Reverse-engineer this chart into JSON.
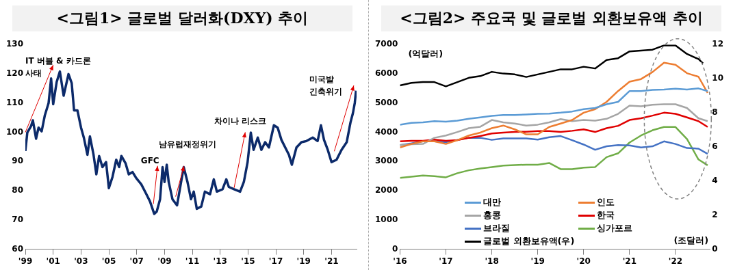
{
  "chart_data": [
    {
      "type": "line",
      "title": "<그림1> 글로벌 달러화(DXY) 추이",
      "x": [
        1999.0,
        1999.14,
        1999.4,
        1999.54,
        1999.77,
        1999.95,
        2000.17,
        2000.4,
        2000.67,
        2000.85,
        2001.0,
        2001.25,
        2001.48,
        2001.75,
        2002.1,
        2002.33,
        2002.5,
        2002.74,
        2003.0,
        2003.2,
        2003.46,
        2003.64,
        2003.9,
        2004.1,
        2004.3,
        2004.54,
        2004.8,
        2005.0,
        2005.26,
        2005.53,
        2005.74,
        2005.9,
        2006.2,
        2006.43,
        2006.7,
        2006.97,
        2007.33,
        2007.7,
        2007.96,
        2008.26,
        2008.44,
        2008.68,
        2008.86,
        2009.0,
        2009.16,
        2009.3,
        2009.57,
        2009.9,
        2010.1,
        2010.38,
        2010.65,
        2010.9,
        2011.1,
        2011.32,
        2011.64,
        2011.9,
        2012.27,
        2012.54,
        2012.76,
        2013.17,
        2013.44,
        2013.62,
        2014.0,
        2014.43,
        2014.7,
        2014.97,
        2015.2,
        2015.4,
        2015.7,
        2015.96,
        2016.23,
        2016.5,
        2016.86,
        2017.13,
        2017.4,
        2017.76,
        2017.94,
        2018.15,
        2018.48,
        2018.84,
        2019.2,
        2019.65,
        2020.0,
        2020.24,
        2020.46,
        2020.73,
        2021.0,
        2021.36,
        2021.72,
        2022.09,
        2022.36,
        2022.54,
        2022.67,
        2022.76
      ],
      "series": [
        {
          "color": "#0c2a6a",
          "values": [
            93.6,
            99.9,
            102,
            104.1,
            97.8,
            101.6,
            100.3,
            105.8,
            110,
            118.4,
            109.6,
            117.2,
            120.8,
            112.5,
            119.9,
            116.8,
            107.5,
            107.5,
            101.6,
            98.2,
            92.3,
            98.6,
            92.3,
            85.6,
            91.9,
            88.1,
            89.8,
            80.9,
            84.7,
            90.6,
            88.1,
            91.9,
            89.4,
            85.6,
            86.4,
            84.3,
            82.2,
            78.8,
            76.3,
            72.1,
            72.9,
            77.1,
            88.1,
            83,
            88.9,
            83,
            77.1,
            75,
            80.5,
            88.1,
            83,
            77.1,
            79.7,
            73.8,
            74.6,
            79.7,
            78.8,
            83.9,
            79.7,
            80.5,
            83.9,
            81.3,
            80.5,
            79.7,
            83,
            89.8,
            99.9,
            94,
            98.2,
            94,
            96.6,
            94.8,
            102.4,
            101.6,
            97.4,
            94,
            92.3,
            88.9,
            94.8,
            96.6,
            97,
            98.2,
            97,
            102.4,
            97.4,
            94,
            89.8,
            90.6,
            94,
            96.6,
            103.3,
            106.6,
            110,
            114.2
          ]
        }
      ],
      "xlim": [
        1999,
        2022.8
      ],
      "xticks": [
        {
          "value": 1999,
          "label": "'99"
        },
        {
          "value": 2001,
          "label": "'01"
        },
        {
          "value": 2003,
          "label": "'03"
        },
        {
          "value": 2005,
          "label": "'05"
        },
        {
          "value": 2007,
          "label": "'07"
        },
        {
          "value": 2009,
          "label": "'09"
        },
        {
          "value": 2011,
          "label": "'11"
        },
        {
          "value": 2013,
          "label": "'13"
        },
        {
          "value": 2015,
          "label": "'15"
        },
        {
          "value": 2017,
          "label": "'17"
        },
        {
          "value": 2019,
          "label": "'19"
        },
        {
          "value": 2021,
          "label": "'21"
        }
      ],
      "ylim": [
        60,
        130
      ],
      "yticks": [
        60,
        70,
        80,
        90,
        100,
        110,
        120,
        130
      ],
      "annotations": [
        "IT 버블 & 카드론\n사태",
        "GFC",
        "남유럽재정위기",
        "차이나 리스크",
        "미국발\n긴축위기"
      ]
    },
    {
      "type": "line",
      "title": "<그림2> 주요국 및 글로벌 외환보유액 추이",
      "ylabel": "(억달러)",
      "y2label": "(조달러)",
      "x": [
        2016,
        2016.25,
        2016.5,
        2016.75,
        2017,
        2017.25,
        2017.5,
        2017.75,
        2018,
        2018.25,
        2018.5,
        2018.75,
        2019,
        2019.25,
        2019.5,
        2019.75,
        2020,
        2020.25,
        2020.5,
        2020.75,
        2021,
        2021.25,
        2021.5,
        2021.75,
        2022,
        2022.25,
        2022.5,
        2022.7
      ],
      "series": [
        {
          "name": "대만",
          "color": "#5b9bd5",
          "values": [
            4260,
            4320,
            4340,
            4380,
            4360,
            4400,
            4460,
            4510,
            4560,
            4590,
            4590,
            4610,
            4630,
            4640,
            4670,
            4710,
            4790,
            4830,
            4960,
            5040,
            5410,
            5410,
            5450,
            5460,
            5490,
            5460,
            5500,
            5410
          ]
        },
        {
          "name": "인도",
          "color": "#ed7d31",
          "values": [
            3480,
            3600,
            3690,
            3690,
            3600,
            3730,
            3890,
            3990,
            4140,
            4230,
            4100,
            3930,
            3930,
            4180,
            4300,
            4420,
            4670,
            4790,
            5040,
            5410,
            5730,
            5820,
            6060,
            6380,
            6310,
            6020,
            5900,
            5350
          ]
        },
        {
          "name": "홍콩",
          "color": "#a5a5a5",
          "values": [
            3560,
            3590,
            3600,
            3810,
            3890,
            4010,
            4140,
            4190,
            4420,
            4340,
            4300,
            4230,
            4260,
            4340,
            4450,
            4380,
            4420,
            4400,
            4460,
            4630,
            4910,
            4890,
            4940,
            4960,
            4960,
            4830,
            4480,
            4380
          ]
        },
        {
          "name": "한국",
          "color": "#e00000",
          "values": [
            3690,
            3710,
            3710,
            3750,
            3710,
            3730,
            3810,
            3870,
            3960,
            3990,
            4010,
            4020,
            4040,
            4040,
            4010,
            4050,
            4100,
            4010,
            4140,
            4220,
            4420,
            4480,
            4570,
            4670,
            4630,
            4510,
            4380,
            4180
          ]
        },
        {
          "name": "브라질",
          "color": "#4472c4",
          "values": [
            3560,
            3620,
            3690,
            3690,
            3660,
            3740,
            3810,
            3810,
            3740,
            3790,
            3790,
            3790,
            3750,
            3830,
            3870,
            3730,
            3580,
            3400,
            3520,
            3560,
            3550,
            3480,
            3520,
            3690,
            3600,
            3460,
            3440,
            3260
          ]
        },
        {
          "name": "싱가포르",
          "color": "#70ad47",
          "values": [
            2440,
            2480,
            2520,
            2500,
            2460,
            2600,
            2700,
            2760,
            2810,
            2860,
            2880,
            2890,
            2890,
            2950,
            2740,
            2740,
            2790,
            2810,
            3150,
            3280,
            3650,
            3890,
            4070,
            4180,
            4180,
            3770,
            3070,
            2870
          ]
        },
        {
          "name": "글로벌 외환보유액(우)",
          "color": "#000000",
          "axis": "y2",
          "x": [
            2016,
            2016.25,
            2016.5,
            2016.75,
            2017,
            2017.25,
            2017.5,
            2017.75,
            2018,
            2018.25,
            2018.5,
            2018.75,
            2019,
            2019.25,
            2019.5,
            2019.75,
            2020,
            2020.25,
            2020.5,
            2020.75,
            2021,
            2021.25,
            2021.5,
            2021.75,
            2022,
            2022.25,
            2022.5,
            2022.6
          ],
          "values": [
            9.6,
            9.75,
            9.8,
            9.8,
            9.55,
            9.8,
            10.05,
            10.15,
            10.4,
            10.3,
            10.25,
            10.1,
            10.25,
            10.4,
            10.55,
            10.55,
            10.7,
            10.6,
            11.1,
            11.2,
            11.6,
            11.65,
            11.7,
            11.95,
            11.95,
            11.45,
            11.15,
            10.9
          ]
        }
      ],
      "xlim": [
        2016,
        2022.75
      ],
      "xticks": [
        {
          "value": 2016,
          "label": "'16"
        },
        {
          "value": 2017,
          "label": "'17"
        },
        {
          "value": 2018,
          "label": "'18"
        },
        {
          "value": 2019,
          "label": "'19"
        },
        {
          "value": 2020,
          "label": "'20"
        },
        {
          "value": 2021,
          "label": "'21"
        },
        {
          "value": 2022,
          "label": "'22"
        }
      ],
      "ylim": [
        0,
        7000
      ],
      "yticks": [
        0,
        1000,
        2000,
        3000,
        4000,
        5000,
        6000,
        7000
      ],
      "y2lim": [
        0,
        12
      ],
      "y2ticks": [
        0,
        2,
        4,
        6,
        8,
        10,
        12
      ],
      "legend": "bottom left"
    }
  ]
}
